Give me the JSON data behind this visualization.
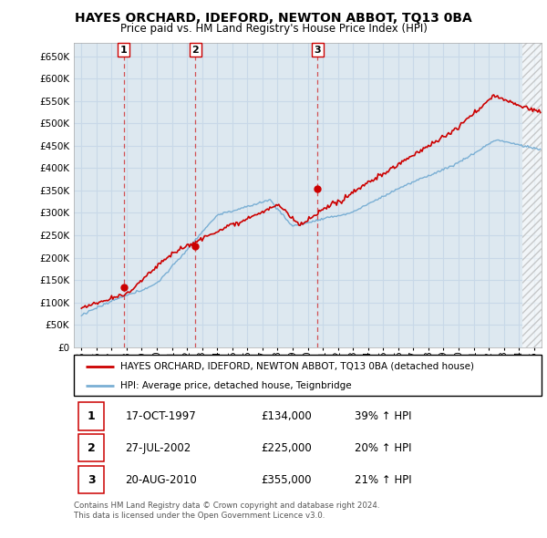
{
  "title": "HAYES ORCHARD, IDEFORD, NEWTON ABBOT, TQ13 0BA",
  "subtitle": "Price paid vs. HM Land Registry's House Price Index (HPI)",
  "legend_line1": "HAYES ORCHARD, IDEFORD, NEWTON ABBOT, TQ13 0BA (detached house)",
  "legend_line2": "HPI: Average price, detached house, Teignbridge",
  "footer1": "Contains HM Land Registry data © Crown copyright and database right 2024.",
  "footer2": "This data is licensed under the Open Government Licence v3.0.",
  "sales": [
    {
      "num": 1,
      "date": "17-OCT-1997",
      "price": "£134,000",
      "hpi": "39% ↑ HPI",
      "year": 1997.8
    },
    {
      "num": 2,
      "date": "27-JUL-2002",
      "price": "£225,000",
      "hpi": "20% ↑ HPI",
      "year": 2002.55
    },
    {
      "num": 3,
      "date": "20-AUG-2010",
      "price": "£355,000",
      "hpi": "21% ↑ HPI",
      "year": 2010.65
    }
  ],
  "sale_marker_values": [
    134000,
    225000,
    355000
  ],
  "ylim": [
    0,
    680000
  ],
  "ytick_max": 650000,
  "ytick_step": 50000,
  "xlim_start": 1994.5,
  "xlim_end": 2025.5,
  "hatch_start": 2024.25,
  "red_color": "#cc0000",
  "blue_color": "#7aafd4",
  "grid_color": "#c8d8e8",
  "bg_color": "#ffffff",
  "plot_bg_color": "#dde8f0",
  "hatch_color": "#c0c0c0"
}
